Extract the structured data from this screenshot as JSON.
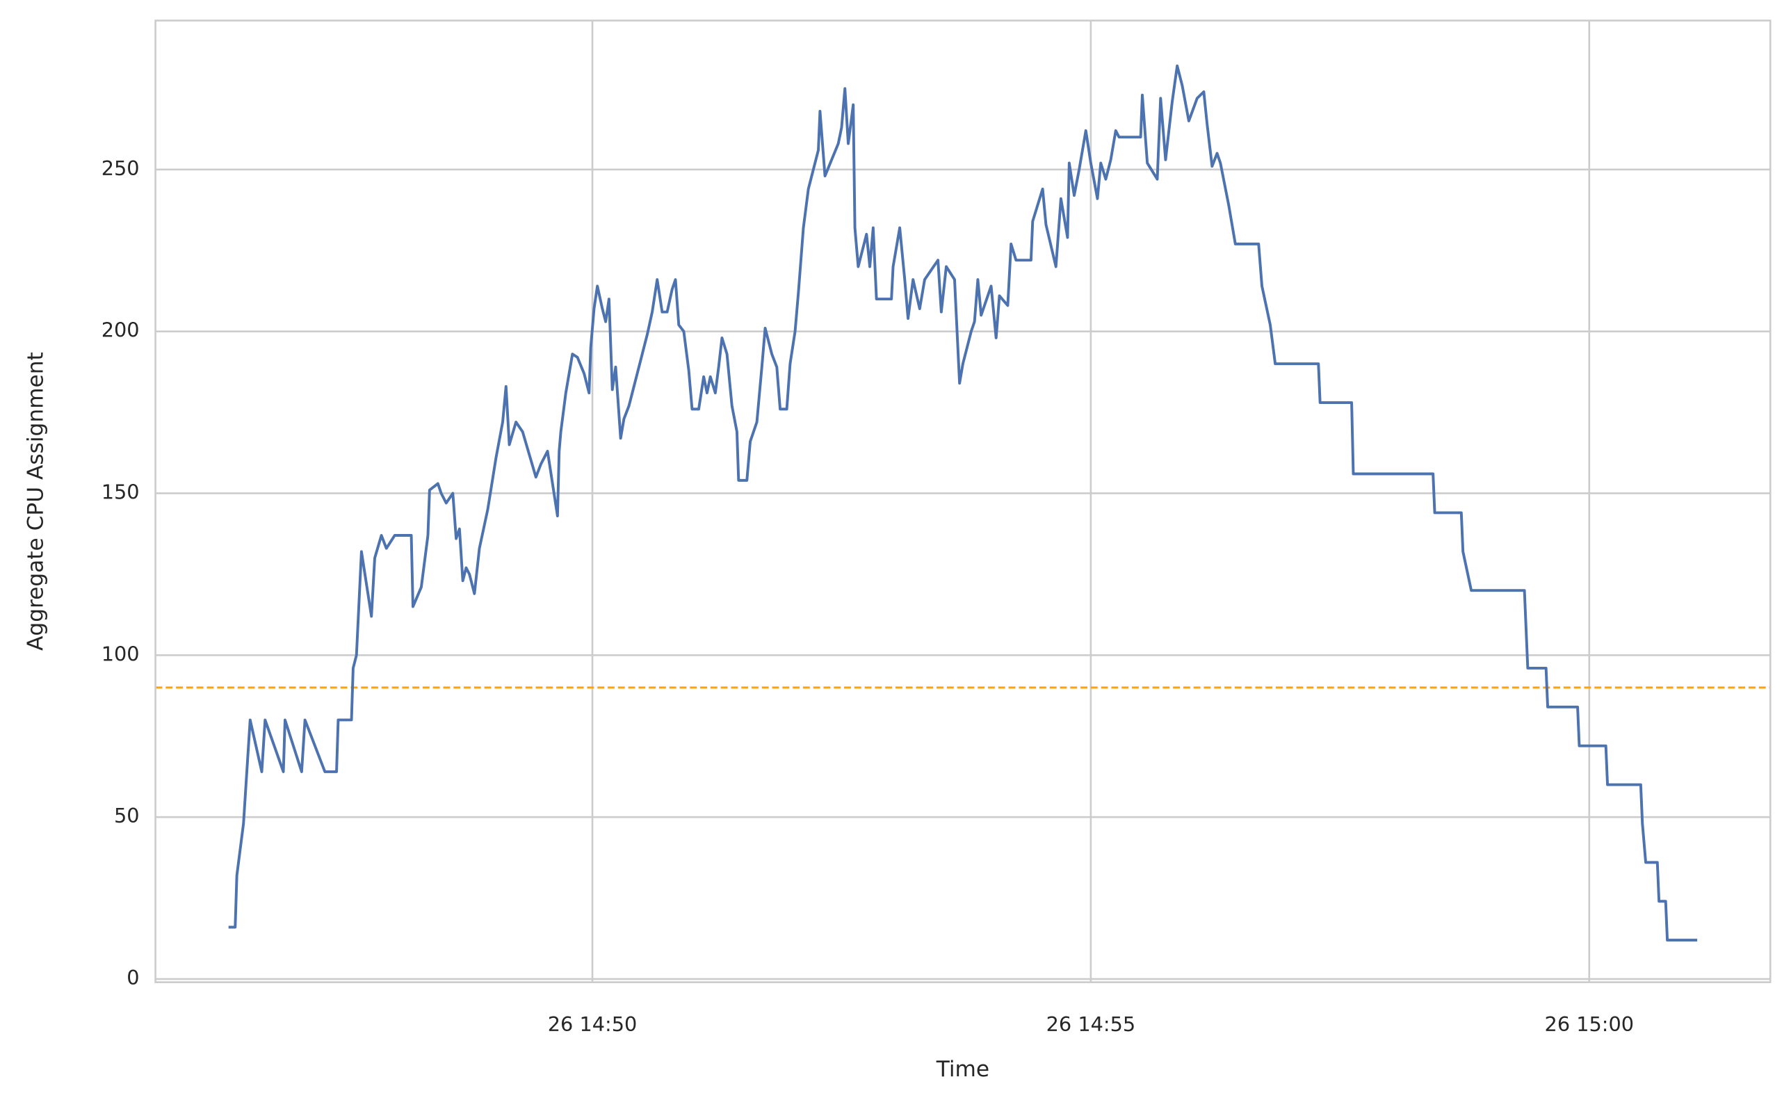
{
  "chart_data": {
    "type": "line",
    "xlabel": "Time",
    "ylabel": "Aggregate CPU Assignment",
    "x": [
      "26 14:46:21",
      "26 14:46:25",
      "26 14:46:26",
      "26 14:46:30",
      "26 14:46:34",
      "26 14:46:41",
      "26 14:46:43",
      "26 14:46:54",
      "26 14:46:55",
      "26 14:47:05",
      "26 14:47:07",
      "26 14:47:19",
      "26 14:47:26",
      "26 14:47:27",
      "26 14:47:35",
      "26 14:47:36",
      "26 14:47:38",
      "26 14:47:41",
      "26 14:47:47",
      "26 14:47:49",
      "26 14:47:53",
      "26 14:47:56",
      "26 14:48:01",
      "26 14:48:11",
      "26 14:48:12",
      "26 14:48:17",
      "26 14:48:21",
      "26 14:48:22",
      "26 14:48:27",
      "26 14:48:29",
      "26 14:48:32",
      "26 14:48:36",
      "26 14:48:38",
      "26 14:48:40",
      "26 14:48:42",
      "26 14:48:44",
      "26 14:48:46",
      "26 14:48:49",
      "26 14:48:52",
      "26 14:48:57",
      "26 14:49:02",
      "26 14:49:06",
      "26 14:49:08",
      "26 14:49:10",
      "26 14:49:14",
      "26 14:49:18",
      "26 14:49:26",
      "26 14:49:29",
      "26 14:49:33",
      "26 14:49:39",
      "26 14:49:40",
      "26 14:49:41",
      "26 14:49:44",
      "26 14:49:48",
      "26 14:49:51",
      "26 14:49:55",
      "26 14:49:58",
      "26 14:49:59",
      "26 14:50:01",
      "26 14:50:03",
      "26 14:50:06",
      "26 14:50:08",
      "26 14:50:10",
      "26 14:50:12",
      "26 14:50:14",
      "26 14:50:17",
      "26 14:50:19",
      "26 14:50:22",
      "26 14:50:28",
      "26 14:50:33",
      "26 14:50:36",
      "26 14:50:39",
      "26 14:50:42",
      "26 14:50:45",
      "26 14:50:48",
      "26 14:50:50",
      "26 14:50:52",
      "26 14:50:55",
      "26 14:50:58",
      "26 14:51:00",
      "26 14:51:04",
      "26 14:51:07",
      "26 14:51:09",
      "26 14:51:11",
      "26 14:51:14",
      "26 14:51:16",
      "26 14:51:18",
      "26 14:51:21",
      "26 14:51:24",
      "26 14:51:27",
      "26 14:51:28",
      "26 14:51:33",
      "26 14:51:35",
      "26 14:51:39",
      "26 14:51:42",
      "26 14:51:44",
      "26 14:51:48",
      "26 14:51:51",
      "26 14:51:53",
      "26 14:51:57",
      "26 14:51:59",
      "26 14:52:02",
      "26 14:52:04",
      "26 14:52:07",
      "26 14:52:10",
      "26 14:52:16",
      "26 14:52:17",
      "26 14:52:20",
      "26 14:52:28",
      "26 14:52:30",
      "26 14:52:32",
      "26 14:52:34",
      "26 14:52:37",
      "26 14:52:38",
      "26 14:52:40",
      "26 14:52:45",
      "26 14:52:47",
      "26 14:52:49",
      "26 14:52:51",
      "26 14:53:00",
      "26 14:53:01",
      "26 14:53:05",
      "26 14:53:08",
      "26 14:53:10",
      "26 14:53:13",
      "26 14:53:17",
      "26 14:53:20",
      "26 14:53:28",
      "26 14:53:30",
      "26 14:53:33",
      "26 14:53:38",
      "26 14:53:41",
      "26 14:53:43",
      "26 14:53:48",
      "26 14:53:50",
      "26 14:53:52",
      "26 14:53:54",
      "26 14:54:00",
      "26 14:54:03",
      "26 14:54:05",
      "26 14:54:10",
      "26 14:54:12",
      "26 14:54:15",
      "26 14:54:24",
      "26 14:54:25",
      "26 14:54:31",
      "26 14:54:33",
      "26 14:54:39",
      "26 14:54:42",
      "26 14:54:46",
      "26 14:54:47",
      "26 14:54:50",
      "26 14:54:53",
      "26 14:54:57",
      "26 14:55:00",
      "26 14:55:04",
      "26 14:55:06",
      "26 14:55:09",
      "26 14:55:12",
      "26 14:55:15",
      "26 14:55:17",
      "26 14:55:30",
      "26 14:55:31",
      "26 14:55:34",
      "26 14:55:40",
      "26 14:55:42",
      "26 14:55:45",
      "26 14:55:49",
      "26 14:55:52",
      "26 14:55:55",
      "26 14:55:59",
      "26 14:56:04",
      "26 14:56:08",
      "26 14:56:10",
      "26 14:56:13",
      "26 14:56:16",
      "26 14:56:18",
      "26 14:56:23",
      "26 14:56:27",
      "26 14:56:41",
      "26 14:56:43",
      "26 14:56:48",
      "26 14:56:51",
      "26 14:57:17",
      "26 14:57:18",
      "26 14:57:37",
      "26 14:57:38",
      "26 14:58:26",
      "26 14:58:27",
      "26 14:58:43",
      "26 14:58:44",
      "26 14:58:49",
      "26 14:59:21",
      "26 14:59:22",
      "26 14:59:23",
      "26 14:59:34",
      "26 14:59:35",
      "26 14:59:53",
      "26 14:59:54",
      "26 15:00:10",
      "26 15:00:11",
      "26 15:00:31",
      "26 15:00:32",
      "26 15:00:34",
      "26 15:00:41",
      "26 15:00:42",
      "26 15:00:46",
      "26 15:00:47",
      "26 15:01:05"
    ],
    "series": [
      {
        "color": "#4c72b0",
        "values": [
          16,
          16,
          32,
          48,
          80,
          64,
          80,
          64,
          80,
          64,
          80,
          64,
          64,
          80,
          80,
          96,
          100,
          132,
          112,
          130,
          137,
          133,
          137,
          137,
          115,
          121,
          137,
          151,
          153,
          150,
          147,
          150,
          136,
          139,
          123,
          127,
          125,
          119,
          133,
          145,
          161,
          172,
          183,
          165,
          172,
          169,
          155,
          159,
          163,
          143,
          163,
          169,
          181,
          193,
          192,
          187,
          181,
          195,
          207,
          214,
          207,
          203,
          210,
          182,
          189,
          167,
          173,
          177,
          189,
          199,
          206,
          216,
          206,
          206,
          213,
          216,
          202,
          200,
          188,
          176,
          176,
          186,
          181,
          186,
          181,
          189,
          198,
          193,
          177,
          169,
          154,
          154,
          166,
          172,
          189,
          201,
          193,
          189,
          176,
          176,
          190,
          200,
          212,
          232,
          244,
          256,
          268,
          248,
          258,
          263,
          275,
          258,
          270,
          232,
          220,
          230,
          220,
          232,
          210,
          210,
          220,
          232,
          216,
          204,
          216,
          207,
          216,
          222,
          206,
          220,
          216,
          184,
          190,
          200,
          203,
          216,
          205,
          214,
          198,
          211,
          208,
          227,
          222,
          222,
          234,
          244,
          233,
          220,
          241,
          229,
          252,
          242,
          250,
          262,
          252,
          241,
          252,
          247,
          253,
          262,
          260,
          260,
          273,
          252,
          247,
          272,
          253,
          271,
          282,
          276,
          265,
          272,
          274,
          264,
          251,
          255,
          252,
          239,
          227,
          227,
          214,
          202,
          190,
          190,
          178,
          178,
          156,
          156,
          144,
          144,
          132,
          120,
          120,
          108,
          96,
          96,
          84,
          84,
          72,
          72,
          60,
          60,
          48,
          36,
          36,
          24,
          24,
          12,
          12
        ]
      }
    ],
    "hlines": [
      {
        "value": 90,
        "color": "#ffa500",
        "style": "dashed"
      }
    ],
    "xlim": [
      "26 14:45:37",
      "26 15:01:49"
    ],
    "xticks": [
      "26 14:50",
      "26 14:55",
      "26 15:00"
    ],
    "ylim": [
      -1,
      296
    ],
    "yticks": [
      0,
      50,
      100,
      150,
      200,
      250
    ],
    "grid": true
  }
}
